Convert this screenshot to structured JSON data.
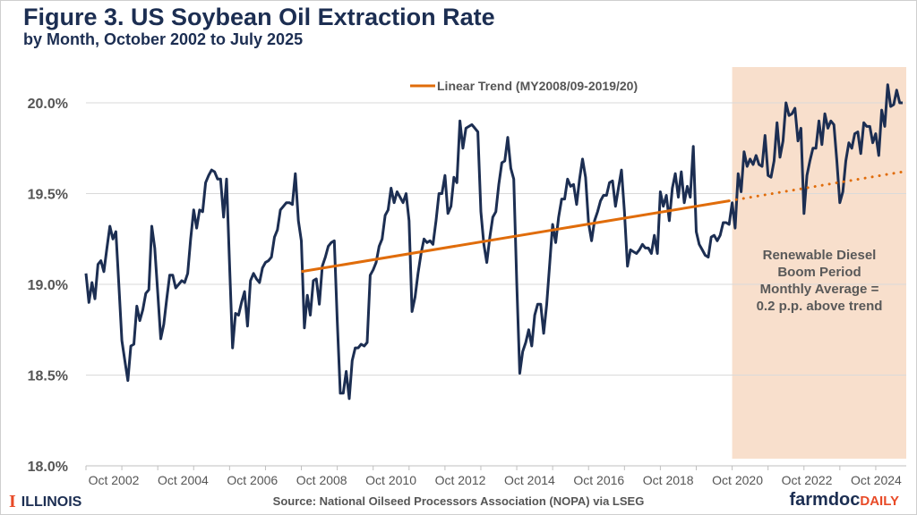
{
  "header": {
    "title": "Figure 3. US Soybean Oil Extraction Rate",
    "subtitle": "by Month, October 2002 to July 2025"
  },
  "footer": {
    "source": "Source: National Oilseed Processors Association (NOPA) via LSEG",
    "left_logo": "ILLINOIS",
    "right_logo_a": "farmdoc",
    "right_logo_b": "DAILY"
  },
  "chart_data": {
    "type": "line",
    "title": "Figure 3. US Soybean Oil Extraction Rate",
    "subtitle": "by Month, October 2002 to July 2025",
    "x_start": "2002-10",
    "x_end": "2025-07",
    "x_frequency": "monthly",
    "x_tick_labels": [
      "Oct 2002",
      "Oct 2004",
      "Oct 2006",
      "Oct 2008",
      "Oct 2010",
      "Oct 2012",
      "Oct 2014",
      "Oct 2016",
      "Oct 2018",
      "Oct 2020",
      "Oct 2022",
      "Oct 2024"
    ],
    "y_tick_labels": [
      "18.0%",
      "18.5%",
      "19.0%",
      "19.5%",
      "20.0%"
    ],
    "ylim": [
      18.0,
      20.2
    ],
    "grid": true,
    "legend_placement": "top-center",
    "series": [
      {
        "color": "#1c2e52",
        "values": [
          19.06,
          18.9,
          19.01,
          18.92,
          19.11,
          19.13,
          19.07,
          19.2,
          19.32,
          19.25,
          19.29,
          19.0,
          18.69,
          18.58,
          18.47,
          18.66,
          18.67,
          18.88,
          18.8,
          18.86,
          18.95,
          18.97,
          19.32,
          19.2,
          18.95,
          18.7,
          18.78,
          18.92,
          19.05,
          19.05,
          18.98,
          19.0,
          19.02,
          19.01,
          19.06,
          19.25,
          19.41,
          19.31,
          19.41,
          19.4,
          19.56,
          19.6,
          19.63,
          19.62,
          19.58,
          19.58,
          19.37,
          19.58,
          19.1,
          18.65,
          18.84,
          18.83,
          18.9,
          18.96,
          18.77,
          19.02,
          19.06,
          19.03,
          19.01,
          19.09,
          19.12,
          19.13,
          19.15,
          19.26,
          19.3,
          19.41,
          19.43,
          19.45,
          19.45,
          19.44,
          19.61,
          19.35,
          19.24,
          18.76,
          18.94,
          18.83,
          19.02,
          19.03,
          18.89,
          19.1,
          19.15,
          19.21,
          19.23,
          19.24,
          18.8,
          18.4,
          18.4,
          18.52,
          18.37,
          18.58,
          18.65,
          18.65,
          18.67,
          18.66,
          18.68,
          19.05,
          19.08,
          19.12,
          19.21,
          19.25,
          19.38,
          19.41,
          19.53,
          19.45,
          19.51,
          19.48,
          19.45,
          19.5,
          19.35,
          18.85,
          18.93,
          19.06,
          19.17,
          19.25,
          19.23,
          19.24,
          19.22,
          19.35,
          19.5,
          19.5,
          19.6,
          19.39,
          19.43,
          19.59,
          19.56,
          19.9,
          19.75,
          19.86,
          19.87,
          19.88,
          19.86,
          19.84,
          19.4,
          19.22,
          19.12,
          19.26,
          19.37,
          19.4,
          19.55,
          19.67,
          19.68,
          19.81,
          19.64,
          19.58,
          19.0,
          18.51,
          18.63,
          18.68,
          18.75,
          18.66,
          18.83,
          18.89,
          18.89,
          18.73,
          18.89,
          19.11,
          19.33,
          19.23,
          19.37,
          19.47,
          19.47,
          19.58,
          19.54,
          19.55,
          19.44,
          19.58,
          19.69,
          19.59,
          19.34,
          19.24,
          19.35,
          19.4,
          19.46,
          19.49,
          19.49,
          19.56,
          19.57,
          19.43,
          19.53,
          19.63,
          19.4,
          19.1,
          19.19,
          19.18,
          19.17,
          19.19,
          19.22,
          19.2,
          19.2,
          19.17,
          19.27,
          19.17,
          19.51,
          19.43,
          19.49,
          19.35,
          19.53,
          19.61,
          19.48,
          19.62,
          19.45,
          19.54,
          19.48,
          19.76,
          19.29,
          19.22,
          19.19,
          19.16,
          19.15,
          19.26,
          19.27,
          19.24,
          19.27,
          19.34,
          19.34,
          19.33,
          19.45,
          19.31,
          19.61,
          19.51,
          19.73,
          19.65,
          19.69,
          19.66,
          19.71,
          19.66,
          19.65,
          19.82,
          19.6,
          19.59,
          19.68,
          19.89,
          19.7,
          19.79,
          20.0,
          19.93,
          19.94,
          19.97,
          19.79,
          19.86,
          19.39,
          19.6,
          19.68,
          19.75,
          19.75,
          19.9,
          19.77,
          19.94,
          19.86,
          19.9,
          19.88,
          19.68,
          19.45,
          19.51,
          19.68,
          19.78,
          19.75,
          19.83,
          19.84,
          19.72,
          19.89,
          19.87,
          19.87,
          19.78,
          19.83,
          19.71,
          19.96,
          19.87,
          20.1,
          19.98,
          19.99,
          20.07,
          20.0,
          20.0
        ]
      },
      {
        "name": "Linear Trend (MY2008/09-2019/20)",
        "color": "#e06c0a",
        "fitted": {
          "start": "2008-10",
          "end": "2020-09",
          "start_value": 19.07,
          "end_value": 19.46
        },
        "projected_dotted": {
          "start": "2020-10",
          "end": "2025-07",
          "end_value": 19.62
        }
      }
    ],
    "shaded_region": {
      "start": "2020-10",
      "end": "2025-07",
      "color": "#f8dfcc"
    },
    "annotation": [
      "Renewable Diesel",
      "Boom Period",
      "Monthly Average =",
      "0.2 p.p. above trend"
    ]
  }
}
